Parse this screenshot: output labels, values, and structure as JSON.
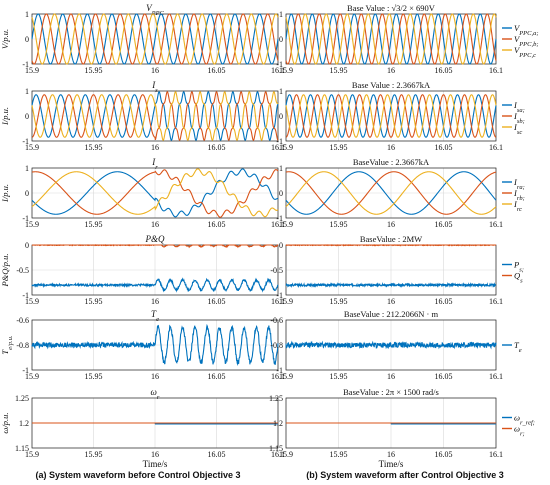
{
  "captions": {
    "left": "(a) System waveform before Control Objective 3",
    "right": "(b) System waveform after Control Objective 3"
  },
  "colors": {
    "a": "#0072BD",
    "b": "#D95319",
    "c": "#EDB120"
  },
  "chart_data": [
    {
      "type": "line",
      "panel": "left",
      "row": 0,
      "title": "V_PPC",
      "ylabel": "V/p.u.",
      "xlim": [
        15.9,
        16.1
      ],
      "ylim": [
        -1,
        1
      ],
      "yticks": [
        "-1",
        "0",
        "1"
      ],
      "xticks": [
        "15.9",
        "15.95",
        "16",
        "16.05",
        "16.1"
      ],
      "series": [
        {
          "color": "a",
          "wave": "sine",
          "amplitude": 1,
          "frequency_hz": 50,
          "phase_deg": 0
        },
        {
          "color": "b",
          "wave": "sine",
          "amplitude": 1,
          "frequency_hz": 50,
          "phase_deg": -120
        },
        {
          "color": "c",
          "wave": "sine",
          "amplitude": 1,
          "frequency_hz": 50,
          "phase_deg": 120
        }
      ]
    },
    {
      "type": "line",
      "panel": "right",
      "row": 0,
      "title": "Base Value : √3/2 × 690V",
      "xlim": [
        15.9,
        16.1
      ],
      "ylim": [
        -1,
        1
      ],
      "yticks": [
        "-1",
        "0",
        "1"
      ],
      "xticks": [
        "15.9",
        "15.95",
        "16",
        "16.05",
        "16.1"
      ],
      "legend": [
        "V_PPC,a;",
        "V_PPC,b;",
        "V_PPC,c"
      ],
      "series": [
        {
          "color": "a",
          "wave": "sine",
          "amplitude": 1,
          "frequency_hz": 50,
          "phase_deg": 0
        },
        {
          "color": "b",
          "wave": "sine",
          "amplitude": 1,
          "frequency_hz": 50,
          "phase_deg": -120
        },
        {
          "color": "c",
          "wave": "sine",
          "amplitude": 1,
          "frequency_hz": 50,
          "phase_deg": 120
        }
      ]
    },
    {
      "type": "line",
      "panel": "left",
      "row": 1,
      "title": "I_s",
      "ylabel": "I/p.u.",
      "xlim": [
        15.9,
        16.1
      ],
      "ylim": [
        -1,
        1
      ],
      "yticks": [
        "-1",
        "0",
        "1"
      ],
      "xticks": [
        "15.9",
        "15.95",
        "16",
        "16.05",
        "16.1"
      ],
      "series": [
        {
          "color": "a",
          "wave": "sine",
          "amplitude": 0.85,
          "frequency_hz": 50,
          "phase_deg": 30,
          "harmonic5_after_16": 0.12
        },
        {
          "color": "b",
          "wave": "sine",
          "amplitude": 0.85,
          "frequency_hz": 50,
          "phase_deg": -90,
          "harmonic5_after_16": 0.12
        },
        {
          "color": "c",
          "wave": "sine",
          "amplitude": 0.85,
          "frequency_hz": 50,
          "phase_deg": 150,
          "harmonic5_after_16": 0.12
        }
      ]
    },
    {
      "type": "line",
      "panel": "right",
      "row": 1,
      "title": "Base Value :  2.3667kA",
      "xlim": [
        15.9,
        16.1
      ],
      "ylim": [
        -1,
        1
      ],
      "yticks": [
        "-1",
        "0",
        "1"
      ],
      "xticks": [
        "15.9",
        "15.95",
        "16",
        "16.05",
        "16.1"
      ],
      "legend": [
        "I_sa;",
        "I_sb;",
        "I_sc"
      ],
      "series": [
        {
          "color": "a",
          "wave": "sine",
          "amplitude": 0.85,
          "frequency_hz": 50,
          "phase_deg": 30
        },
        {
          "color": "b",
          "wave": "sine",
          "amplitude": 0.85,
          "frequency_hz": 50,
          "phase_deg": -90
        },
        {
          "color": "c",
          "wave": "sine",
          "amplitude": 0.85,
          "frequency_hz": 50,
          "phase_deg": 150
        }
      ]
    },
    {
      "type": "line",
      "panel": "left",
      "row": 2,
      "title": "I_r",
      "ylabel": "I/p.u.",
      "xlim": [
        15.9,
        16.1
      ],
      "ylim": [
        -1,
        1
      ],
      "yticks": [
        "-1",
        "0",
        "1"
      ],
      "xticks": [
        "15.9",
        "15.95",
        "16",
        "16.05",
        "16.1"
      ],
      "series": [
        {
          "color": "a",
          "wave": "sine",
          "amplitude": 0.85,
          "frequency_hz": 10,
          "phase_deg": 200,
          "ripple_after_16": 0.12
        },
        {
          "color": "b",
          "wave": "sine",
          "amplitude": 0.85,
          "frequency_hz": 10,
          "phase_deg": 80,
          "ripple_after_16": 0.12
        },
        {
          "color": "c",
          "wave": "sine",
          "amplitude": 0.85,
          "frequency_hz": 10,
          "phase_deg": -40,
          "ripple_after_16": 0.12
        }
      ]
    },
    {
      "type": "line",
      "panel": "right",
      "row": 2,
      "title": "BaseValue :  2.3667kA",
      "xlim": [
        15.9,
        16.1
      ],
      "ylim": [
        -1,
        1
      ],
      "yticks": [
        "-1",
        "0",
        "1"
      ],
      "xticks": [
        "15.9",
        "15.95",
        "16",
        "16.05",
        "16.1"
      ],
      "legend": [
        "I_ra;",
        "I_rb;",
        "I_rc"
      ],
      "series": [
        {
          "color": "a",
          "wave": "sine",
          "amplitude": 0.85,
          "frequency_hz": 10,
          "phase_deg": 200
        },
        {
          "color": "b",
          "wave": "sine",
          "amplitude": 0.85,
          "frequency_hz": 10,
          "phase_deg": 80
        },
        {
          "color": "c",
          "wave": "sine",
          "amplitude": 0.85,
          "frequency_hz": 10,
          "phase_deg": -40
        }
      ]
    },
    {
      "type": "line",
      "panel": "left",
      "row": 3,
      "title": "P&Q",
      "ylabel": "P&Q/p.u.",
      "xlim": [
        15.9,
        16.1
      ],
      "ylim": [
        -1,
        0
      ],
      "yticks": [
        "-1",
        "-0.5",
        "0"
      ],
      "xticks": [
        "15.9",
        "15.95",
        "16",
        "16.05",
        "16.1"
      ],
      "series": [
        {
          "color": "a",
          "wave": "level",
          "level": -0.8,
          "noise": 0.02,
          "osc_after_16": 0.1,
          "osc_hz": 100
        },
        {
          "color": "b",
          "wave": "level",
          "level": 0.0,
          "noise": 0.01,
          "osc_after_16": 0.03,
          "osc_hz": 100
        }
      ]
    },
    {
      "type": "line",
      "panel": "right",
      "row": 3,
      "title": "BaseValue :   2MW",
      "xlim": [
        15.9,
        16.1
      ],
      "ylim": [
        -1,
        0
      ],
      "yticks": [
        "-1",
        "-0.5",
        "0"
      ],
      "xticks": [
        "15.9",
        "15.95",
        "16",
        "16.05",
        "16.1"
      ],
      "legend": [
        "P_s;",
        "Q_s"
      ],
      "series": [
        {
          "color": "a",
          "wave": "level",
          "level": -0.8,
          "noise": 0.02
        },
        {
          "color": "b",
          "wave": "level",
          "level": 0.0,
          "noise": 0.01
        }
      ]
    },
    {
      "type": "line",
      "panel": "left",
      "row": 4,
      "title": "T_e",
      "ylabel": "T_e/p.u.",
      "xlim": [
        15.9,
        16.1
      ],
      "ylim": [
        -1,
        -0.6
      ],
      "yticks": [
        "-1",
        "-0.8",
        "-0.6"
      ],
      "xticks": [
        "15.9",
        "15.95",
        "16",
        "16.05",
        "16.1"
      ],
      "series": [
        {
          "color": "a",
          "wave": "level",
          "level": -0.8,
          "noise": 0.02,
          "osc_after_16": 0.14,
          "osc_hz": 100
        }
      ]
    },
    {
      "type": "line",
      "panel": "right",
      "row": 4,
      "title": "BaseValue :   212.2066N · m",
      "xlim": [
        15.9,
        16.1
      ],
      "ylim": [
        -1,
        -0.6
      ],
      "yticks": [
        "-1",
        "-0.8",
        "-0.6"
      ],
      "xticks": [
        "15.9",
        "15.95",
        "16",
        "16.05",
        "16.1"
      ],
      "legend": [
        "T_e"
      ],
      "series": [
        {
          "color": "a",
          "wave": "level",
          "level": -0.8,
          "noise": 0.02
        }
      ]
    },
    {
      "type": "line",
      "panel": "left",
      "row": 5,
      "title": "ω_r",
      "ylabel": "ω/p.u.",
      "xlim": [
        15.9,
        16.1
      ],
      "ylim": [
        1.15,
        1.25
      ],
      "yticks": [
        "1.15",
        "1.2",
        "1.25"
      ],
      "xticks": [
        "15.9",
        "15.95",
        "16",
        "16.05",
        "16.1"
      ],
      "xlabel": "Time/s",
      "series": [
        {
          "color": "a",
          "wave": "level",
          "level": 1.2,
          "noise": 0.0,
          "step_after_16": -0.002
        },
        {
          "color": "b",
          "wave": "level",
          "level": 1.2,
          "noise": 0.0
        }
      ]
    },
    {
      "type": "line",
      "panel": "right",
      "row": 5,
      "title": "BaseValue :   2π × 1500 rad/s",
      "xlim": [
        15.9,
        16.1
      ],
      "ylim": [
        1.15,
        1.25
      ],
      "yticks": [
        "1.15",
        "1.2",
        "1.25"
      ],
      "xticks": [
        "15.9",
        "15.95",
        "16",
        "16.05",
        "16.1"
      ],
      "xlabel": "Time/s",
      "legend": [
        "ω_r_ref;",
        "ω_r;"
      ],
      "series": [
        {
          "color": "a",
          "wave": "level",
          "level": 1.2,
          "noise": 0.0,
          "step_after_16": -0.002
        },
        {
          "color": "b",
          "wave": "level",
          "level": 1.2,
          "noise": 0.0
        }
      ]
    }
  ]
}
